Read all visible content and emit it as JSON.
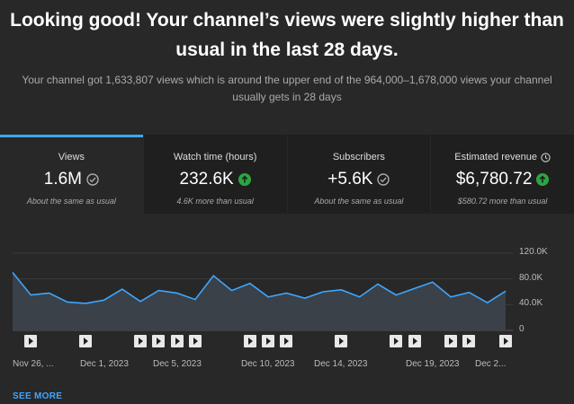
{
  "header": {
    "headline_line1": "Looking good! Your channel’s views were slightly higher than",
    "headline_line2": "usual in the last 28 days.",
    "subtext_line1": "Your channel got 1,633,807 views which is around the upper end of the 964,000–1,678,000 views your channel",
    "subtext_line2": "usually gets in 28 days"
  },
  "metrics": [
    {
      "label": "Views",
      "value": "1.6M",
      "note": "About the same as usual",
      "status_icon": "check-circle-icon",
      "selected": true
    },
    {
      "label": "Watch time (hours)",
      "value": "232.6K",
      "note": "4.6K more than usual",
      "status_icon": "arrow-up-circle-icon",
      "selected": false
    },
    {
      "label": "Subscribers",
      "value": "+5.6K",
      "note": "About the same as usual",
      "status_icon": "check-circle-icon",
      "selected": false
    },
    {
      "label": "Estimated revenue",
      "value": "$6,780.72",
      "note": "$580.72 more than usual",
      "status_icon": "arrow-up-circle-icon",
      "label_icon": "clock-icon",
      "selected": false
    }
  ],
  "colors": {
    "accent": "#3ea6ff",
    "up": "#2ba640",
    "line": "#3ea6ff"
  },
  "chart_data": {
    "type": "area",
    "ytick_labels": [
      "120.0K",
      "80.0K",
      "40.0K",
      "0"
    ],
    "yticks": [
      120000,
      80000,
      40000,
      0
    ],
    "ylim": [
      0,
      120000
    ],
    "xtick_labels": [
      "Nov 26, ...",
      "Dec 1, 2023",
      "Dec 5, 2023",
      "Dec 10, 2023",
      "Dec 14, 2023",
      "Dec 19, 2023",
      "Dec 2..."
    ],
    "series": [
      {
        "values": [
          90000,
          55000,
          58000,
          44000,
          42000,
          47000,
          64000,
          45000,
          62000,
          58000,
          48000,
          85000,
          62000,
          73000,
          52000,
          58000,
          50000,
          60000,
          63000,
          52000,
          72000,
          55000,
          65000,
          75000,
          52000,
          59000,
          43000,
          61000
        ]
      }
    ],
    "video_markers": [
      1,
      4,
      7,
      8,
      9,
      10,
      13,
      14,
      15,
      18,
      21,
      22,
      24,
      25,
      27
    ]
  },
  "see_more_label": "SEE MORE"
}
